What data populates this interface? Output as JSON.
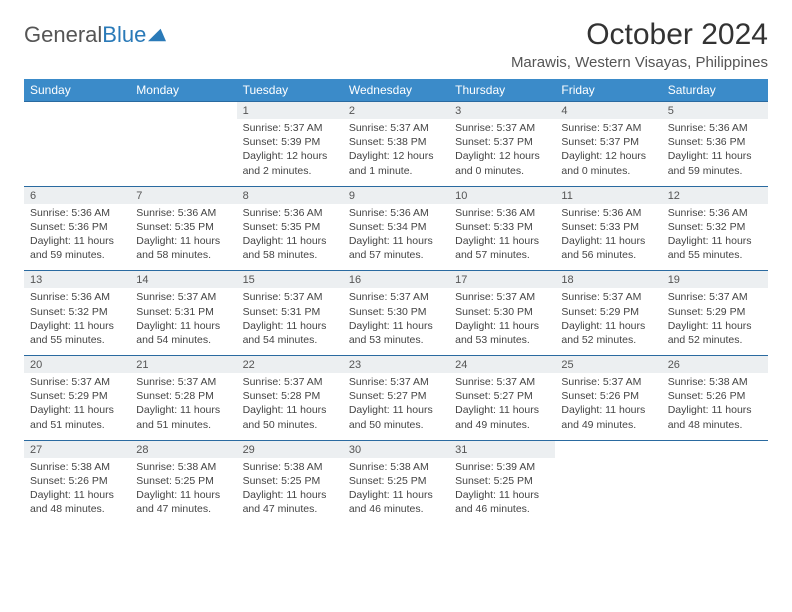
{
  "logo": {
    "word1": "General",
    "word2": "Blue"
  },
  "title": "October 2024",
  "location": "Marawis, Western Visayas, Philippines",
  "colors": {
    "header_bg": "#3b8bc9",
    "header_text": "#ffffff",
    "daynum_bg": "#eceff1",
    "week_border": "#2a6aa0",
    "logo_blue": "#2a7ab8",
    "body_text": "#444444"
  },
  "dayNames": [
    "Sunday",
    "Monday",
    "Tuesday",
    "Wednesday",
    "Thursday",
    "Friday",
    "Saturday"
  ],
  "weeks": [
    [
      null,
      null,
      {
        "n": "1",
        "sr": "5:37 AM",
        "ss": "5:39 PM",
        "dl": "12 hours and 2 minutes."
      },
      {
        "n": "2",
        "sr": "5:37 AM",
        "ss": "5:38 PM",
        "dl": "12 hours and 1 minute."
      },
      {
        "n": "3",
        "sr": "5:37 AM",
        "ss": "5:37 PM",
        "dl": "12 hours and 0 minutes."
      },
      {
        "n": "4",
        "sr": "5:37 AM",
        "ss": "5:37 PM",
        "dl": "12 hours and 0 minutes."
      },
      {
        "n": "5",
        "sr": "5:36 AM",
        "ss": "5:36 PM",
        "dl": "11 hours and 59 minutes."
      }
    ],
    [
      {
        "n": "6",
        "sr": "5:36 AM",
        "ss": "5:36 PM",
        "dl": "11 hours and 59 minutes."
      },
      {
        "n": "7",
        "sr": "5:36 AM",
        "ss": "5:35 PM",
        "dl": "11 hours and 58 minutes."
      },
      {
        "n": "8",
        "sr": "5:36 AM",
        "ss": "5:35 PM",
        "dl": "11 hours and 58 minutes."
      },
      {
        "n": "9",
        "sr": "5:36 AM",
        "ss": "5:34 PM",
        "dl": "11 hours and 57 minutes."
      },
      {
        "n": "10",
        "sr": "5:36 AM",
        "ss": "5:33 PM",
        "dl": "11 hours and 57 minutes."
      },
      {
        "n": "11",
        "sr": "5:36 AM",
        "ss": "5:33 PM",
        "dl": "11 hours and 56 minutes."
      },
      {
        "n": "12",
        "sr": "5:36 AM",
        "ss": "5:32 PM",
        "dl": "11 hours and 55 minutes."
      }
    ],
    [
      {
        "n": "13",
        "sr": "5:36 AM",
        "ss": "5:32 PM",
        "dl": "11 hours and 55 minutes."
      },
      {
        "n": "14",
        "sr": "5:37 AM",
        "ss": "5:31 PM",
        "dl": "11 hours and 54 minutes."
      },
      {
        "n": "15",
        "sr": "5:37 AM",
        "ss": "5:31 PM",
        "dl": "11 hours and 54 minutes."
      },
      {
        "n": "16",
        "sr": "5:37 AM",
        "ss": "5:30 PM",
        "dl": "11 hours and 53 minutes."
      },
      {
        "n": "17",
        "sr": "5:37 AM",
        "ss": "5:30 PM",
        "dl": "11 hours and 53 minutes."
      },
      {
        "n": "18",
        "sr": "5:37 AM",
        "ss": "5:29 PM",
        "dl": "11 hours and 52 minutes."
      },
      {
        "n": "19",
        "sr": "5:37 AM",
        "ss": "5:29 PM",
        "dl": "11 hours and 52 minutes."
      }
    ],
    [
      {
        "n": "20",
        "sr": "5:37 AM",
        "ss": "5:29 PM",
        "dl": "11 hours and 51 minutes."
      },
      {
        "n": "21",
        "sr": "5:37 AM",
        "ss": "5:28 PM",
        "dl": "11 hours and 51 minutes."
      },
      {
        "n": "22",
        "sr": "5:37 AM",
        "ss": "5:28 PM",
        "dl": "11 hours and 50 minutes."
      },
      {
        "n": "23",
        "sr": "5:37 AM",
        "ss": "5:27 PM",
        "dl": "11 hours and 50 minutes."
      },
      {
        "n": "24",
        "sr": "5:37 AM",
        "ss": "5:27 PM",
        "dl": "11 hours and 49 minutes."
      },
      {
        "n": "25",
        "sr": "5:37 AM",
        "ss": "5:26 PM",
        "dl": "11 hours and 49 minutes."
      },
      {
        "n": "26",
        "sr": "5:38 AM",
        "ss": "5:26 PM",
        "dl": "11 hours and 48 minutes."
      }
    ],
    [
      {
        "n": "27",
        "sr": "5:38 AM",
        "ss": "5:26 PM",
        "dl": "11 hours and 48 minutes."
      },
      {
        "n": "28",
        "sr": "5:38 AM",
        "ss": "5:25 PM",
        "dl": "11 hours and 47 minutes."
      },
      {
        "n": "29",
        "sr": "5:38 AM",
        "ss": "5:25 PM",
        "dl": "11 hours and 47 minutes."
      },
      {
        "n": "30",
        "sr": "5:38 AM",
        "ss": "5:25 PM",
        "dl": "11 hours and 46 minutes."
      },
      {
        "n": "31",
        "sr": "5:39 AM",
        "ss": "5:25 PM",
        "dl": "11 hours and 46 minutes."
      },
      null,
      null
    ]
  ],
  "labels": {
    "sunrise": "Sunrise:",
    "sunset": "Sunset:",
    "daylight": "Daylight:"
  }
}
